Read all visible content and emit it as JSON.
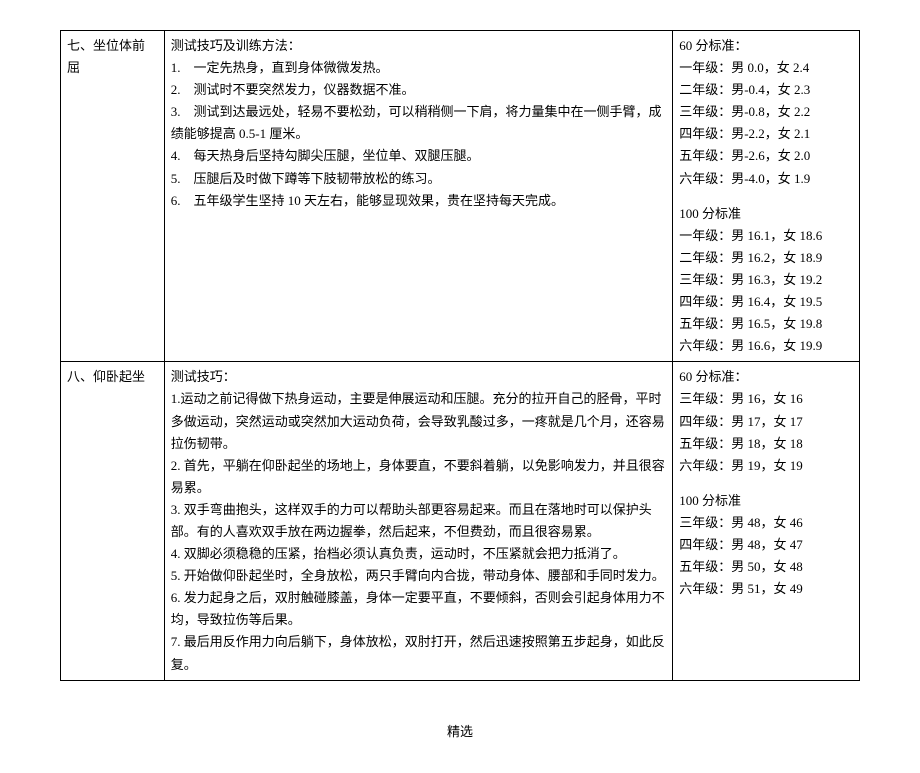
{
  "row1": {
    "title": "七、坐位体前屈",
    "methods_header": "测试技巧及训练方法：",
    "tips": [
      "1.　一定先热身，直到身体微微发热。",
      "2.　测试时不要突然发力，仪器数据不准。",
      "3.　测试到达最远处，轻易不要松劲，可以稍稍侧一下肩，将力量集中在一侧手臂，成绩能够提高 0.5-1 厘米。",
      "4.　每天热身后坚持勾脚尖压腿，坐位单、双腿压腿。",
      "5.　压腿后及时做下蹲等下肢韧带放松的练习。",
      "6.　五年级学生坚持 10 天左右，能够显现效果，贵在坚持每天完成。"
    ],
    "std60_title": "60 分标准：",
    "std60": [
      "一年级：男 0.0，女 2.4",
      "二年级：男-0.4，女 2.3",
      "三年级：男-0.8，女 2.2",
      "四年级：男-2.2，女 2.1",
      "五年级：男-2.6，女 2.0",
      "六年级：男-4.0，女 1.9"
    ],
    "std100_title": "100 分标准",
    "std100": [
      "一年级：男 16.1，女 18.6",
      "二年级：男 16.2，女 18.9",
      "三年级：男 16.3，女 19.2",
      "四年级：男 16.4，女 19.5",
      "五年级：男 16.5，女 19.8",
      "六年级：男 16.6，女 19.9"
    ]
  },
  "row2": {
    "title": "八、仰卧起坐",
    "methods_header": "测试技巧：",
    "tips": [
      "1.运动之前记得做下热身运动，主要是伸展运动和压腿。充分的拉开自己的胫骨，平时多做运动，突然运动或突然加大运动负荷，会导致乳酸过多，一疼就是几个月，还容易拉伤韧带。",
      "2. 首先，平躺在仰卧起坐的场地上，身体要直，不要斜着躺，以免影响发力，并且很容易累。",
      "3. 双手弯曲抱头，这样双手的力可以帮助头部更容易起来。而且在落地时可以保护头部。有的人喜欢双手放在两边握拳，然后起来，不但费劲，而且很容易累。",
      "4. 双脚必须稳稳的压紧，抬档必须认真负责，运动时，不压紧就会把力抵消了。",
      "5. 开始做仰卧起坐时，全身放松，两只手臂向内合拢，带动身体、腰部和手同时发力。",
      "6. 发力起身之后，双肘触碰膝盖，身体一定要平直，不要倾斜，否则会引起身体用力不均，导致拉伤等后果。",
      "7. 最后用反作用力向后躺下，身体放松，双肘打开，然后迅速按照第五步起身，如此反复。"
    ],
    "std60_title": "60 分标准：",
    "std60": [
      "三年级：男 16，女 16",
      "四年级：男 17，女 17",
      "五年级：男 18，女 18",
      "六年级：男 19，女 19"
    ],
    "std100_title": "100 分标准",
    "std100": [
      "三年级：男 48，女 46",
      "四年级：男 48，女 47",
      "五年级：男 50，女 48",
      "六年级：男 51，女 49"
    ]
  },
  "footer": "精选"
}
